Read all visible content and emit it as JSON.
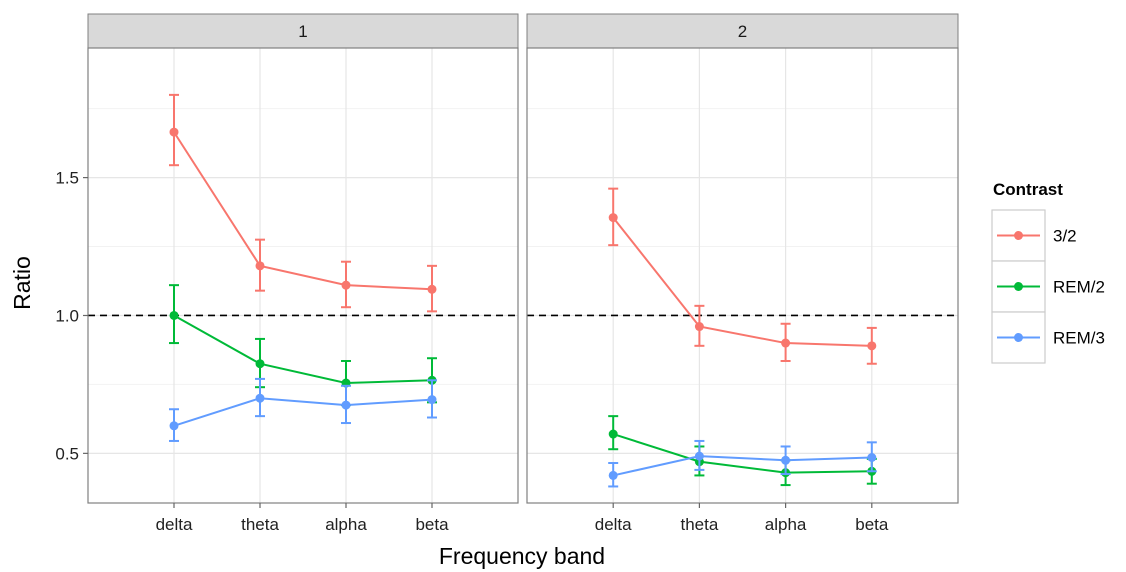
{
  "chart_data": {
    "type": "line",
    "facets": [
      "1",
      "2"
    ],
    "categories": [
      "delta",
      "theta",
      "alpha",
      "beta"
    ],
    "xlabel": "Frequency band",
    "ylabel": "Ratio",
    "ylim": [
      0.32,
      1.97
    ],
    "yticks": [
      0.5,
      1.0,
      1.5
    ],
    "ytick_labels": [
      "0.5",
      "1.0",
      "1.5"
    ],
    "reference_line": 1.0,
    "grid": true,
    "legend": {
      "title": "Contrast",
      "position": "right"
    },
    "series": [
      {
        "name": "3/2",
        "color": "#F8766D",
        "panels": {
          "1": {
            "values": [
              1.665,
              1.18,
              1.11,
              1.095
            ],
            "lower": [
              1.545,
              1.09,
              1.03,
              1.015
            ],
            "upper": [
              1.8,
              1.275,
              1.195,
              1.18
            ]
          },
          "2": {
            "values": [
              1.355,
              0.96,
              0.9,
              0.89
            ],
            "lower": [
              1.255,
              0.89,
              0.835,
              0.825
            ],
            "upper": [
              1.46,
              1.035,
              0.97,
              0.955
            ]
          }
        }
      },
      {
        "name": "REM/2",
        "color": "#00BA38",
        "panels": {
          "1": {
            "values": [
              1.0,
              0.825,
              0.755,
              0.765
            ],
            "lower": [
              0.9,
              0.74,
              0.675,
              0.685
            ],
            "upper": [
              1.11,
              0.915,
              0.835,
              0.845
            ]
          },
          "2": {
            "values": [
              0.57,
              0.47,
              0.43,
              0.435
            ],
            "lower": [
              0.515,
              0.42,
              0.385,
              0.39
            ],
            "upper": [
              0.635,
              0.525,
              0.475,
              0.48
            ]
          }
        }
      },
      {
        "name": "REM/3",
        "color": "#619CFF",
        "panels": {
          "1": {
            "values": [
              0.6,
              0.7,
              0.675,
              0.695
            ],
            "lower": [
              0.545,
              0.635,
              0.61,
              0.63
            ],
            "upper": [
              0.66,
              0.77,
              0.745,
              0.765
            ]
          },
          "2": {
            "values": [
              0.42,
              0.49,
              0.475,
              0.485
            ],
            "lower": [
              0.38,
              0.44,
              0.425,
              0.435
            ],
            "upper": [
              0.465,
              0.545,
              0.525,
              0.54
            ]
          }
        }
      }
    ]
  }
}
